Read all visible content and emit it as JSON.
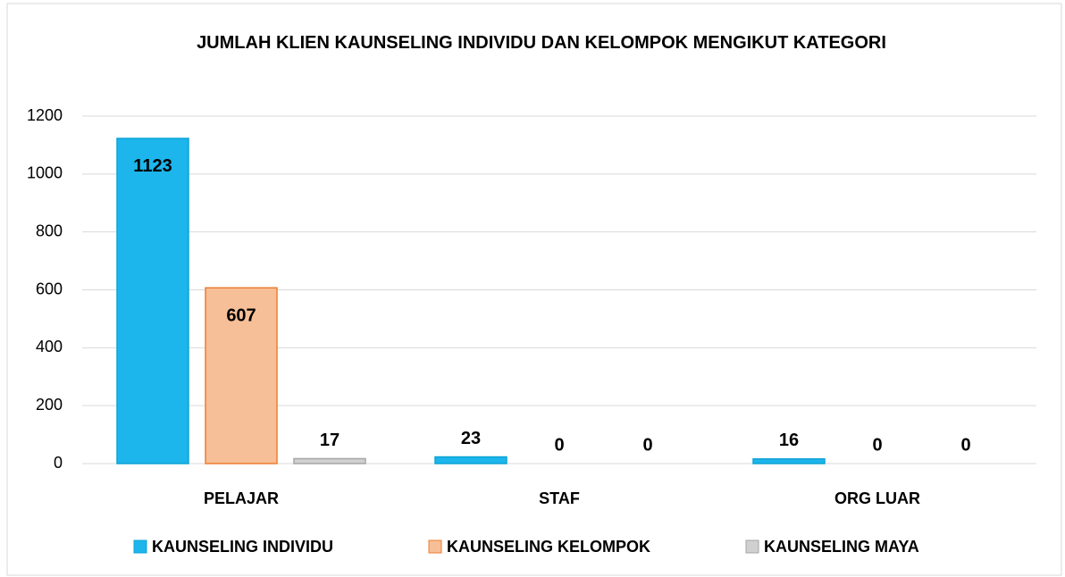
{
  "chart_data": {
    "type": "bar",
    "title": "JUMLAH KLIEN KAUNSELING INDIVIDU DAN KELOMPOK MENGIKUT KATEGORI",
    "categories": [
      "PELAJAR",
      "STAF",
      "ORG LUAR"
    ],
    "series": [
      {
        "name": "KAUNSELING INDIVIDU",
        "color": "#1cb5ec",
        "values": [
          1123,
          23,
          16
        ]
      },
      {
        "name": "KAUNSELING KELOMPOK",
        "color": "#f7bf98",
        "values": [
          607,
          0,
          0
        ]
      },
      {
        "name": "KAUNSELING MAYA",
        "color": "#d0d0d0",
        "values": [
          17,
          0,
          0
        ]
      }
    ],
    "ylim": [
      0,
      1200
    ],
    "yticks": [
      0,
      200,
      400,
      600,
      800,
      1000,
      1200
    ],
    "grid": true,
    "legend": "bottom"
  }
}
